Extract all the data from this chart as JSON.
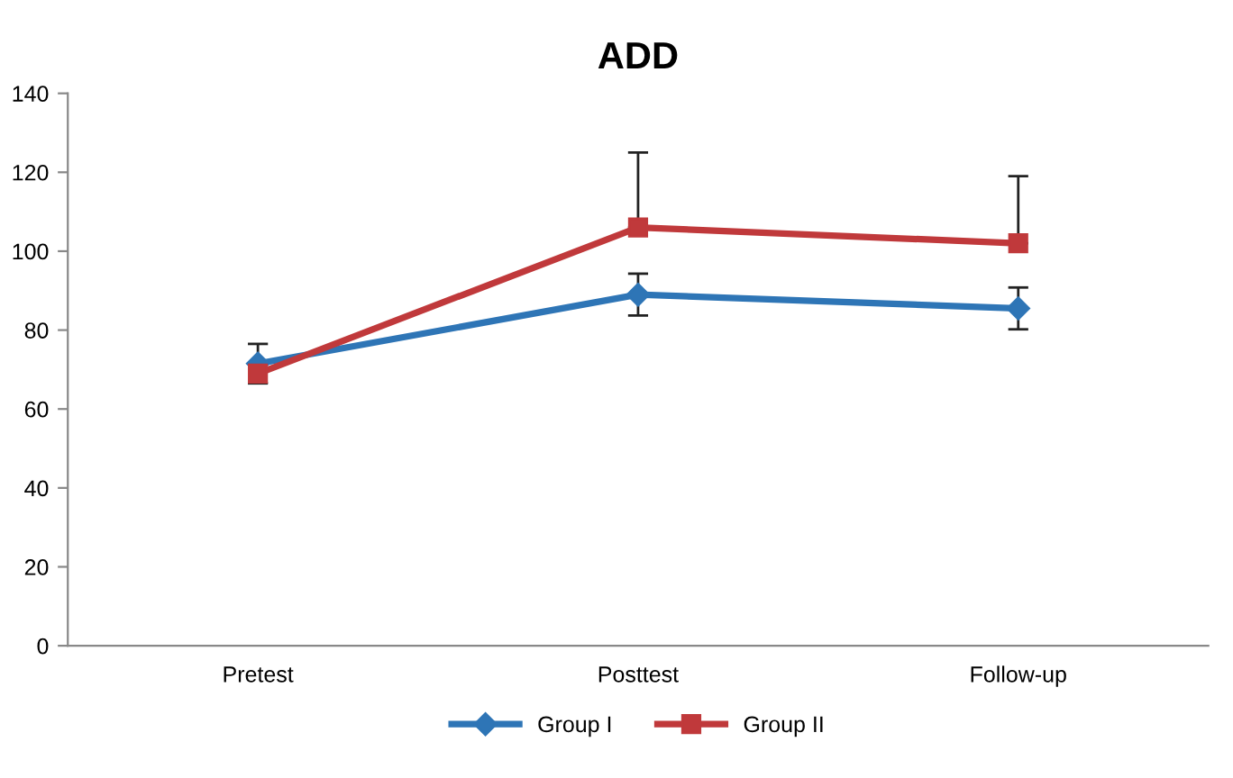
{
  "chart_data": {
    "type": "line",
    "title": "ADD",
    "categories": [
      "Pretest",
      "Posttest",
      "Follow-up"
    ],
    "series": [
      {
        "name": "Group I",
        "color": "#2e75b6",
        "marker": "diamond",
        "values": [
          71.5,
          89,
          85.5
        ],
        "errors": [
          5,
          5.3,
          5.3
        ]
      },
      {
        "name": "Group II",
        "color": "#c0393b",
        "marker": "square",
        "values": [
          69,
          106,
          102
        ],
        "errors": [
          null,
          [
            106,
            125
          ],
          [
            102,
            119
          ]
        ]
      }
    ],
    "ylim": [
      0,
      140
    ],
    "yticks": [
      0,
      20,
      40,
      60,
      80,
      100,
      120,
      140
    ],
    "grid": false,
    "legend": "bottom",
    "line_style": "solid"
  }
}
